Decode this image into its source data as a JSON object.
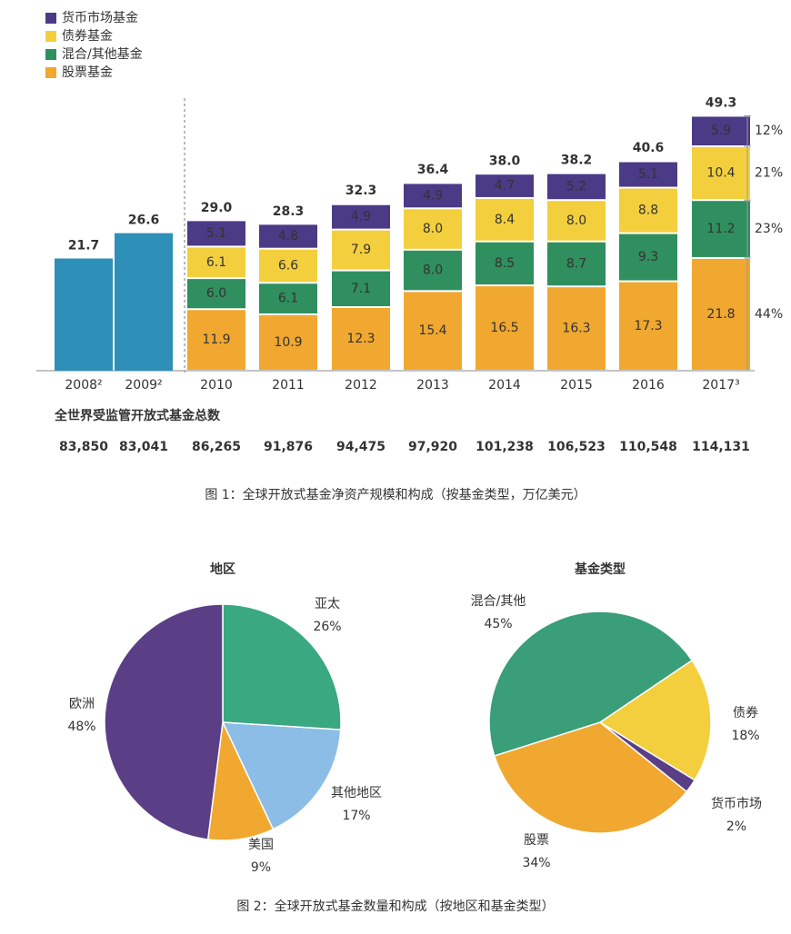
{
  "chart_data": [
    {
      "type": "stacked-bar",
      "categories": [
        "2008²",
        "2009²",
        "2010",
        "2011",
        "2012",
        "2013",
        "2014",
        "2015",
        "2016",
        "2017³"
      ],
      "series": [
        {
          "name": "股票基金",
          "color": "#f0a830",
          "values": [
            null,
            null,
            11.9,
            10.9,
            12.3,
            15.4,
            16.5,
            16.3,
            17.3,
            21.8
          ],
          "value_labels": [
            null,
            null,
            "11.9",
            "10.9",
            "12.3",
            "15.4",
            "16.5",
            "16.3",
            "17.3",
            "21.8"
          ]
        },
        {
          "name": "混合/其他基金",
          "color": "#2f8f5e",
          "values": [
            null,
            null,
            6.0,
            6.1,
            7.1,
            8.0,
            8.5,
            8.7,
            9.3,
            11.2
          ],
          "value_labels": [
            null,
            null,
            "6.0",
            "6.1",
            "7.1",
            "8.0",
            "8.5",
            "8.7",
            "9.3",
            "11.2"
          ]
        },
        {
          "name": "债券基金",
          "color": "#f3cf3e",
          "values": [
            null,
            null,
            6.1,
            6.6,
            7.9,
            8.0,
            8.4,
            8.0,
            8.8,
            10.4
          ],
          "value_labels": [
            null,
            null,
            "6.1",
            "6.6",
            "7.9",
            "8.0",
            "8.4",
            "8.0",
            "8.8",
            "10.4"
          ]
        },
        {
          "name": "货币市场基金",
          "color": "#4b3a86",
          "values": [
            null,
            null,
            5.1,
            4.8,
            4.9,
            4.9,
            4.7,
            5.2,
            5.1,
            5.9
          ],
          "value_labels": [
            null,
            null,
            "5.1",
            "4.8",
            "4.9",
            "4.9",
            "4.7",
            "5.2",
            "5.1",
            "5.9"
          ]
        }
      ],
      "totals": {
        "color": "#2e8fb8",
        "values": [
          21.7,
          26.6,
          29.0,
          28.3,
          32.3,
          36.4,
          38.0,
          38.2,
          40.6,
          49.3
        ],
        "value_labels": [
          "21.7",
          "26.6",
          "29.0",
          "28.3",
          "32.3",
          "36.4",
          "38.0",
          "38.2",
          "40.6",
          "49.3"
        ]
      },
      "shares_2017": {
        "values": [
          44,
          23,
          21,
          12
        ],
        "value_labels": [
          "44%",
          "23%",
          "21%",
          "12%"
        ]
      },
      "ylim": [
        0,
        55
      ],
      "fund_count_label": "全世界受监管开放式基金总数",
      "fund_counts": [
        {
          "value": 83850,
          "label": "83,850"
        },
        {
          "value": 83041,
          "label": "83,041"
        },
        {
          "value": 86265,
          "label": "86,265"
        },
        {
          "value": 91876,
          "label": "91,876"
        },
        {
          "value": 94475,
          "label": "94,475"
        },
        {
          "value": 97920,
          "label": "97,920"
        },
        {
          "value": 101238,
          "label": "101,238"
        },
        {
          "value": 106523,
          "label": "106,523"
        },
        {
          "value": 110548,
          "label": "110,548"
        },
        {
          "value": 114131,
          "label": "114,131"
        }
      ],
      "caption": "图 1：全球开放式基金净资产规模和构成（按基金类型，万亿美元）"
    },
    {
      "type": "pie",
      "title": "地区",
      "categories": [
        "亚太",
        "其他地区",
        "美国",
        "欧洲"
      ],
      "values": [
        26,
        17,
        9,
        48
      ],
      "value_labels": [
        "26%",
        "17%",
        "9%",
        "48%"
      ],
      "colors": [
        "#3aa880",
        "#8cbde6",
        "#f0a830",
        "#5a3f87"
      ],
      "caption": "图 2：全球开放式基金数量和构成（按地区和基金类型）"
    },
    {
      "type": "pie",
      "title": "基金类型",
      "categories": [
        "债券",
        "货币市场",
        "股票",
        "混合/其他"
      ],
      "values": [
        18,
        2,
        34,
        45
      ],
      "value_labels": [
        "18%",
        "2%",
        "34%",
        "45%"
      ],
      "colors": [
        "#f3cf3e",
        "#5a3f87",
        "#f0a830",
        "#3a9e78"
      ]
    }
  ]
}
